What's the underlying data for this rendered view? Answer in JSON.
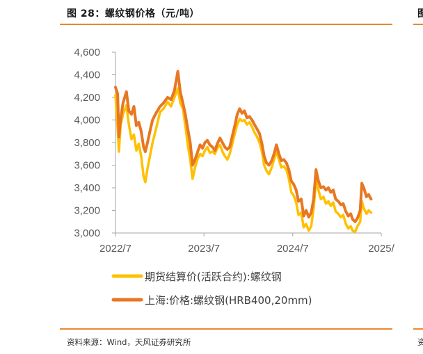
{
  "header": {
    "figure_title": "图 28：螺纹钢价格（元/吨）",
    "next_title_fragment": "图"
  },
  "footer": {
    "source": "资料来源：Wind，天风证券研究所",
    "next_source_fragment": "资"
  },
  "colors": {
    "accent_rule": "#e8892e",
    "series_futures": "#ffc000",
    "series_spot": "#e87722"
  },
  "chart_data": {
    "type": "line",
    "title": "螺纹钢价格（元/吨）",
    "xlabel": "",
    "ylabel": "",
    "ylim": [
      3000,
      4600
    ],
    "yticks": [
      3000,
      3200,
      3400,
      3600,
      3800,
      4000,
      4200,
      4400,
      4600
    ],
    "ytick_labels": [
      "3,000",
      "3,200",
      "3,400",
      "3,600",
      "3,800",
      "4,000",
      "4,200",
      "4,400",
      "4,600"
    ],
    "xlim": [
      "2022-07-01",
      "2025-07-01"
    ],
    "xticks": [
      "2022-07-01",
      "2023-07-01",
      "2024-07-01",
      "2025-07-01"
    ],
    "xtick_labels": [
      "2022/7",
      "2023/7",
      "2024/7",
      "2025/"
    ],
    "grid": false,
    "legend_position": "bottom",
    "series": [
      {
        "name": "期货结算价(活跃合约):螺纹钢",
        "color": "#ffc000",
        "points": [
          [
            "2022-07-01",
            4220
          ],
          [
            "2022-07-10",
            3920
          ],
          [
            "2022-07-15",
            3720
          ],
          [
            "2022-07-22",
            3950
          ],
          [
            "2022-08-01",
            4050
          ],
          [
            "2022-08-15",
            4130
          ],
          [
            "2022-08-25",
            3960
          ],
          [
            "2022-09-05",
            3830
          ],
          [
            "2022-09-15",
            3870
          ],
          [
            "2022-09-25",
            3730
          ],
          [
            "2022-10-05",
            3790
          ],
          [
            "2022-10-15",
            3680
          ],
          [
            "2022-10-25",
            3500
          ],
          [
            "2022-11-01",
            3450
          ],
          [
            "2022-11-10",
            3570
          ],
          [
            "2022-11-20",
            3680
          ],
          [
            "2022-12-01",
            3800
          ],
          [
            "2022-12-15",
            3920
          ],
          [
            "2023-01-01",
            4070
          ],
          [
            "2023-01-15",
            4100
          ],
          [
            "2023-02-01",
            4160
          ],
          [
            "2023-02-15",
            4120
          ],
          [
            "2023-03-01",
            4200
          ],
          [
            "2023-03-15",
            4280
          ],
          [
            "2023-03-25",
            4150
          ],
          [
            "2023-04-05",
            4100
          ],
          [
            "2023-04-15",
            3950
          ],
          [
            "2023-04-25",
            3780
          ],
          [
            "2023-05-05",
            3650
          ],
          [
            "2023-05-15",
            3480
          ],
          [
            "2023-05-25",
            3580
          ],
          [
            "2023-06-05",
            3660
          ],
          [
            "2023-06-15",
            3700
          ],
          [
            "2023-06-25",
            3680
          ],
          [
            "2023-07-05",
            3730
          ],
          [
            "2023-07-15",
            3760
          ],
          [
            "2023-07-25",
            3710
          ],
          [
            "2023-08-05",
            3720
          ],
          [
            "2023-08-15",
            3700
          ],
          [
            "2023-08-25",
            3750
          ],
          [
            "2023-09-05",
            3780
          ],
          [
            "2023-09-15",
            3720
          ],
          [
            "2023-09-25",
            3680
          ],
          [
            "2023-10-05",
            3650
          ],
          [
            "2023-10-15",
            3700
          ],
          [
            "2023-10-25",
            3780
          ],
          [
            "2023-11-05",
            3880
          ],
          [
            "2023-11-15",
            3960
          ],
          [
            "2023-11-25",
            4010
          ],
          [
            "2023-12-05",
            3990
          ],
          [
            "2023-12-15",
            4000
          ],
          [
            "2023-12-25",
            3960
          ],
          [
            "2024-01-05",
            3980
          ],
          [
            "2024-01-15",
            3940
          ],
          [
            "2024-01-25",
            3890
          ],
          [
            "2024-02-05",
            3850
          ],
          [
            "2024-02-15",
            3800
          ],
          [
            "2024-02-25",
            3720
          ],
          [
            "2024-03-05",
            3600
          ],
          [
            "2024-03-15",
            3550
          ],
          [
            "2024-03-25",
            3520
          ],
          [
            "2024-04-05",
            3580
          ],
          [
            "2024-04-15",
            3650
          ],
          [
            "2024-04-25",
            3720
          ],
          [
            "2024-05-05",
            3650
          ],
          [
            "2024-05-15",
            3580
          ],
          [
            "2024-05-25",
            3590
          ],
          [
            "2024-06-05",
            3560
          ],
          [
            "2024-06-15",
            3480
          ],
          [
            "2024-06-25",
            3360
          ],
          [
            "2024-07-05",
            3330
          ],
          [
            "2024-07-15",
            3270
          ],
          [
            "2024-07-25",
            3160
          ],
          [
            "2024-08-05",
            3180
          ],
          [
            "2024-08-15",
            3050
          ],
          [
            "2024-08-25",
            3080
          ],
          [
            "2024-09-05",
            3020
          ],
          [
            "2024-09-15",
            3060
          ],
          [
            "2024-09-25",
            3220
          ],
          [
            "2024-10-05",
            3460
          ],
          [
            "2024-10-15",
            3380
          ],
          [
            "2024-10-25",
            3300
          ],
          [
            "2024-11-05",
            3320
          ],
          [
            "2024-11-15",
            3260
          ],
          [
            "2024-11-25",
            3280
          ],
          [
            "2024-12-05",
            3240
          ],
          [
            "2024-12-15",
            3270
          ],
          [
            "2024-12-25",
            3190
          ],
          [
            "2025-01-05",
            3170
          ],
          [
            "2025-01-15",
            3140
          ],
          [
            "2025-01-25",
            3160
          ],
          [
            "2025-02-05",
            3080
          ],
          [
            "2025-02-15",
            3040
          ],
          [
            "2025-02-25",
            3060
          ],
          [
            "2025-03-05",
            3020
          ],
          [
            "2025-03-15",
            3010
          ],
          [
            "2025-03-25",
            3060
          ],
          [
            "2025-04-05",
            3100
          ],
          [
            "2025-04-12",
            3280
          ],
          [
            "2025-04-20",
            3220
          ],
          [
            "2025-05-01",
            3170
          ],
          [
            "2025-05-10",
            3200
          ],
          [
            "2025-05-20",
            3180
          ]
        ]
      },
      {
        "name": "上海:价格:螺纹钢(HRB400,20mm)",
        "color": "#e87722",
        "points": [
          [
            "2022-07-01",
            4290
          ],
          [
            "2022-07-10",
            4230
          ],
          [
            "2022-07-15",
            3850
          ],
          [
            "2022-07-22",
            4000
          ],
          [
            "2022-08-01",
            4150
          ],
          [
            "2022-08-15",
            4250
          ],
          [
            "2022-08-25",
            4080
          ],
          [
            "2022-09-05",
            4050
          ],
          [
            "2022-09-15",
            4120
          ],
          [
            "2022-09-25",
            3950
          ],
          [
            "2022-10-05",
            3980
          ],
          [
            "2022-10-15",
            3900
          ],
          [
            "2022-10-25",
            3760
          ],
          [
            "2022-11-01",
            3720
          ],
          [
            "2022-11-10",
            3800
          ],
          [
            "2022-11-20",
            3900
          ],
          [
            "2022-12-01",
            4000
          ],
          [
            "2022-12-15",
            4060
          ],
          [
            "2023-01-01",
            4120
          ],
          [
            "2023-01-15",
            4150
          ],
          [
            "2023-02-01",
            4200
          ],
          [
            "2023-02-15",
            4180
          ],
          [
            "2023-03-01",
            4260
          ],
          [
            "2023-03-15",
            4430
          ],
          [
            "2023-03-25",
            4250
          ],
          [
            "2023-04-05",
            4150
          ],
          [
            "2023-04-15",
            4050
          ],
          [
            "2023-04-25",
            3920
          ],
          [
            "2023-05-05",
            3800
          ],
          [
            "2023-05-15",
            3600
          ],
          [
            "2023-05-25",
            3650
          ],
          [
            "2023-06-05",
            3720
          ],
          [
            "2023-06-15",
            3780
          ],
          [
            "2023-06-25",
            3750
          ],
          [
            "2023-07-05",
            3800
          ],
          [
            "2023-07-15",
            3820
          ],
          [
            "2023-07-25",
            3780
          ],
          [
            "2023-08-05",
            3760
          ],
          [
            "2023-08-15",
            3730
          ],
          [
            "2023-08-25",
            3790
          ],
          [
            "2023-09-05",
            3840
          ],
          [
            "2023-09-15",
            3800
          ],
          [
            "2023-09-25",
            3760
          ],
          [
            "2023-10-05",
            3740
          ],
          [
            "2023-10-15",
            3760
          ],
          [
            "2023-10-25",
            3850
          ],
          [
            "2023-11-05",
            3950
          ],
          [
            "2023-11-15",
            4050
          ],
          [
            "2023-11-25",
            4100
          ],
          [
            "2023-12-05",
            4060
          ],
          [
            "2023-12-15",
            4080
          ],
          [
            "2023-12-25",
            4020
          ],
          [
            "2024-01-05",
            4030
          ],
          [
            "2024-01-15",
            4000
          ],
          [
            "2024-01-25",
            3960
          ],
          [
            "2024-02-05",
            3920
          ],
          [
            "2024-02-15",
            3880
          ],
          [
            "2024-02-25",
            3790
          ],
          [
            "2024-03-05",
            3680
          ],
          [
            "2024-03-15",
            3620
          ],
          [
            "2024-03-25",
            3600
          ],
          [
            "2024-04-05",
            3640
          ],
          [
            "2024-04-15",
            3700
          ],
          [
            "2024-04-25",
            3780
          ],
          [
            "2024-05-05",
            3700
          ],
          [
            "2024-05-15",
            3640
          ],
          [
            "2024-05-25",
            3650
          ],
          [
            "2024-06-05",
            3620
          ],
          [
            "2024-06-15",
            3560
          ],
          [
            "2024-06-25",
            3460
          ],
          [
            "2024-07-05",
            3430
          ],
          [
            "2024-07-15",
            3380
          ],
          [
            "2024-07-25",
            3280
          ],
          [
            "2024-08-05",
            3300
          ],
          [
            "2024-08-15",
            3150
          ],
          [
            "2024-08-25",
            3200
          ],
          [
            "2024-09-05",
            3140
          ],
          [
            "2024-09-15",
            3180
          ],
          [
            "2024-09-25",
            3300
          ],
          [
            "2024-10-05",
            3560
          ],
          [
            "2024-10-15",
            3460
          ],
          [
            "2024-10-25",
            3400
          ],
          [
            "2024-11-05",
            3410
          ],
          [
            "2024-11-15",
            3380
          ],
          [
            "2024-11-25",
            3400
          ],
          [
            "2024-12-05",
            3360
          ],
          [
            "2024-12-15",
            3380
          ],
          [
            "2024-12-25",
            3300
          ],
          [
            "2025-01-05",
            3280
          ],
          [
            "2025-01-15",
            3250
          ],
          [
            "2025-01-25",
            3260
          ],
          [
            "2025-02-05",
            3190
          ],
          [
            "2025-02-15",
            3150
          ],
          [
            "2025-02-25",
            3170
          ],
          [
            "2025-03-05",
            3120
          ],
          [
            "2025-03-15",
            3100
          ],
          [
            "2025-03-25",
            3130
          ],
          [
            "2025-04-05",
            3200
          ],
          [
            "2025-04-12",
            3440
          ],
          [
            "2025-04-20",
            3400
          ],
          [
            "2025-05-01",
            3320
          ],
          [
            "2025-05-10",
            3340
          ],
          [
            "2025-05-20",
            3300
          ]
        ]
      }
    ]
  }
}
